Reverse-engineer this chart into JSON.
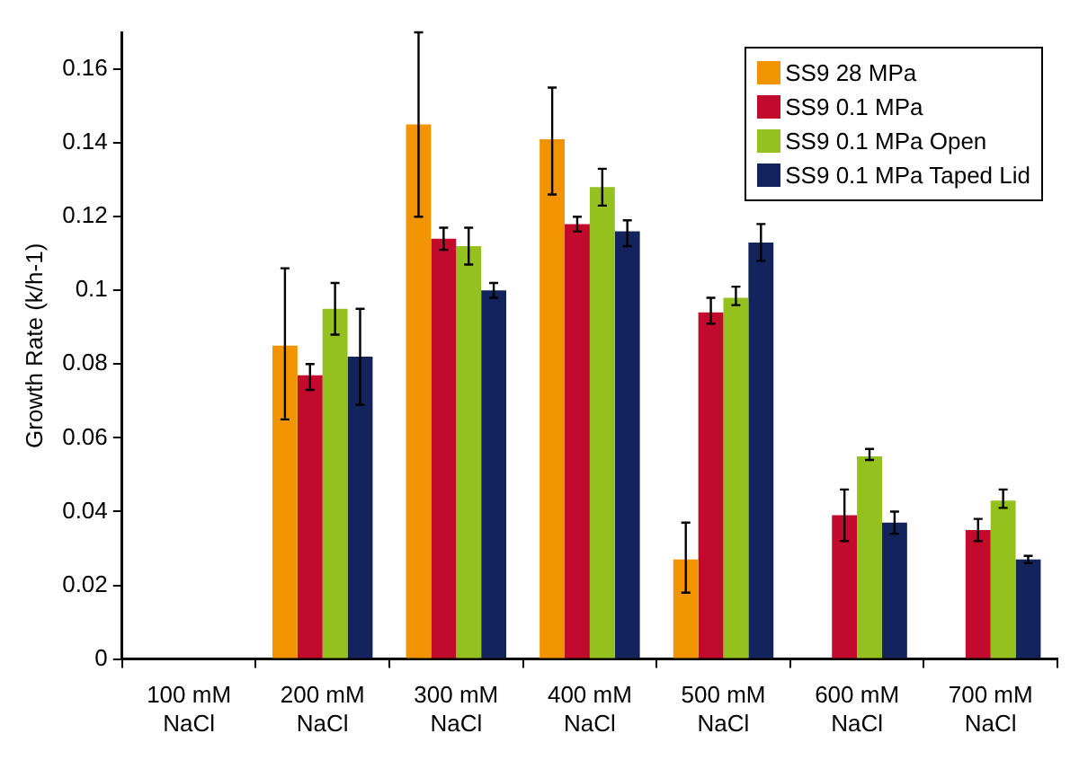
{
  "chart_data": {
    "type": "bar",
    "ylabel": "Growth Rate (k/h-1)",
    "categories": [
      "100 mM NaCl",
      "200 mM NaCl",
      "300 mM NaCl",
      "400 mM NaCl",
      "500 mM NaCl",
      "600 mM NaCl",
      "700 mM NaCl"
    ],
    "series": [
      {
        "name": "SS9 28 MPa",
        "color": "#f29400",
        "values": [
          null,
          0.085,
          0.145,
          0.141,
          0.027,
          null,
          null
        ],
        "errors": [
          null,
          [
            0.065,
            0.106
          ],
          [
            0.12,
            0.17
          ],
          [
            0.126,
            0.155
          ],
          [
            0.018,
            0.037
          ],
          null,
          null
        ]
      },
      {
        "name": "SS9 0.1 MPa",
        "color": "#c20a2c",
        "values": [
          null,
          0.077,
          0.114,
          0.118,
          0.094,
          0.039,
          0.035
        ],
        "errors": [
          null,
          [
            0.073,
            0.08
          ],
          [
            0.111,
            0.117
          ],
          [
            0.116,
            0.12
          ],
          [
            0.091,
            0.098
          ],
          [
            0.032,
            0.046
          ],
          [
            0.032,
            0.038
          ]
        ]
      },
      {
        "name": "SS9 0.1 MPa Open",
        "color": "#95c11f",
        "values": [
          null,
          0.095,
          0.112,
          0.128,
          0.098,
          0.055,
          0.043
        ],
        "errors": [
          null,
          [
            0.088,
            0.102
          ],
          [
            0.107,
            0.117
          ],
          [
            0.123,
            0.133
          ],
          [
            0.096,
            0.101
          ],
          [
            0.054,
            0.057
          ],
          [
            0.041,
            0.046
          ]
        ]
      },
      {
        "name": "SS9 0.1 MPa Taped Lid",
        "color": "#13235b",
        "values": [
          null,
          0.082,
          0.1,
          0.116,
          0.113,
          0.037,
          0.027
        ],
        "errors": [
          null,
          [
            0.069,
            0.095
          ],
          [
            0.098,
            0.102
          ],
          [
            0.112,
            0.119
          ],
          [
            0.108,
            0.118
          ],
          [
            0.034,
            0.04
          ],
          [
            0.026,
            0.028
          ]
        ]
      }
    ],
    "ylim": [
      0,
      0.17
    ],
    "yticks": [
      0,
      0.02,
      0.04,
      0.06,
      0.08,
      0.1,
      0.12,
      0.14,
      0.16
    ],
    "grid": false,
    "legend": "top right"
  }
}
